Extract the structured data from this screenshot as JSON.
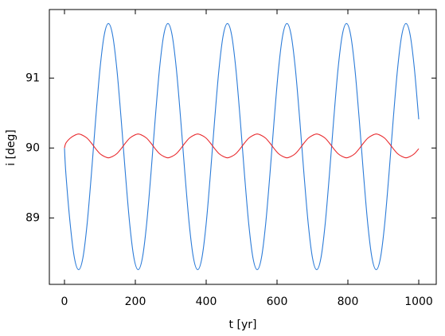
{
  "chart_data": {
    "type": "line",
    "x_label": "t [yr]",
    "y_label": "i [deg]",
    "x": [
      0,
      4,
      16,
      28,
      40,
      52,
      64,
      76,
      88,
      100,
      112,
      124,
      136,
      148,
      160,
      172,
      184,
      196,
      208,
      220,
      232,
      244,
      256,
      268,
      280,
      292,
      304,
      316,
      328,
      340,
      352,
      364,
      376,
      388,
      400,
      412,
      424,
      436,
      448,
      460,
      472,
      484,
      496,
      508,
      520,
      532,
      544,
      556,
      568,
      580,
      592,
      604,
      616,
      628,
      640,
      652,
      664,
      676,
      688,
      700,
      712,
      724,
      736,
      748,
      760,
      772,
      784,
      796,
      808,
      820,
      832,
      844,
      856,
      868,
      880,
      892,
      904,
      916,
      928,
      940,
      952,
      964,
      976,
      988,
      1000
    ],
    "series": [
      {
        "color": "#2b7bd8",
        "values": [
          90.0,
          89.63,
          88.92,
          88.43,
          88.26,
          88.43,
          88.92,
          89.63,
          90.41,
          91.12,
          91.61,
          91.78,
          91.61,
          91.12,
          90.41,
          89.63,
          88.92,
          88.43,
          88.26,
          88.43,
          88.92,
          89.63,
          90.41,
          91.12,
          91.61,
          91.78,
          91.61,
          91.12,
          90.41,
          89.63,
          88.92,
          88.43,
          88.26,
          88.43,
          88.92,
          89.63,
          90.41,
          91.12,
          91.61,
          91.78,
          91.61,
          91.12,
          90.41,
          89.63,
          88.92,
          88.43,
          88.26,
          88.43,
          88.92,
          89.63,
          90.41,
          91.12,
          91.61,
          91.78,
          91.61,
          91.12,
          90.41,
          89.63,
          88.92,
          88.43,
          88.26,
          88.43,
          88.92,
          89.63,
          90.41,
          91.12,
          91.61,
          91.78,
          91.61,
          91.12,
          90.41,
          89.63,
          88.92,
          88.43,
          88.26,
          88.43,
          88.92,
          89.63,
          90.41,
          91.12,
          91.61,
          91.78,
          91.61,
          91.12,
          90.41
        ]
      },
      {
        "color": "#e8282c",
        "values": [
          90.0,
          90.07,
          90.14,
          90.18,
          90.2,
          90.18,
          90.14,
          90.07,
          89.99,
          89.92,
          89.88,
          89.86,
          89.88,
          89.92,
          89.99,
          90.07,
          90.14,
          90.18,
          90.2,
          90.18,
          90.14,
          90.07,
          89.99,
          89.92,
          89.88,
          89.86,
          89.88,
          89.92,
          89.99,
          90.07,
          90.14,
          90.18,
          90.2,
          90.18,
          90.14,
          90.07,
          89.99,
          89.92,
          89.88,
          89.86,
          89.88,
          89.92,
          89.99,
          90.07,
          90.14,
          90.18,
          90.2,
          90.18,
          90.14,
          90.07,
          89.99,
          89.92,
          89.88,
          89.86,
          89.88,
          89.92,
          89.99,
          90.07,
          90.14,
          90.18,
          90.2,
          90.18,
          90.14,
          90.07,
          89.99,
          89.92,
          89.88,
          89.86,
          89.88,
          89.92,
          89.99,
          90.07,
          90.14,
          90.18,
          90.2,
          90.18,
          90.14,
          90.07,
          89.99,
          89.92,
          89.88,
          89.86,
          89.88,
          89.92,
          89.99
        ]
      }
    ],
    "xlim": [
      -42.7,
      1049.4
    ],
    "ylim": [
      88.05,
      91.98
    ],
    "xticks": [
      0,
      200,
      400,
      600,
      800,
      1000
    ],
    "yticks": [
      89,
      90,
      91
    ]
  }
}
